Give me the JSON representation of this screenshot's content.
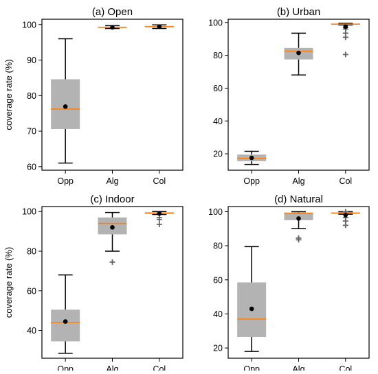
{
  "ylabel_shared": "coverage rate (%)",
  "colors": {
    "box": "#b3b3b3",
    "median": "#ff7f0e",
    "mean": "#000000",
    "outlier": "#666666",
    "axis": "#000000"
  },
  "chart_data": [
    {
      "type": "box",
      "title": "(a) Open",
      "categories": [
        "Opp",
        "Alg",
        "Col"
      ],
      "ylim": [
        59,
        101.5
      ],
      "yticks": [
        60,
        70,
        80,
        90,
        100
      ],
      "ylabel": "coverage rate (%)",
      "boxes": [
        {
          "category": "Opp",
          "whisker_low": 61,
          "q1": 70.6,
          "median": 76.2,
          "q3": 84.6,
          "whisker_high": 96,
          "mean": 76.9,
          "outliers": []
        },
        {
          "category": "Alg",
          "whisker_low": 98.9,
          "q1": 99.1,
          "median": 99.2,
          "q3": 99.4,
          "whisker_high": 99.7,
          "mean": 99.2,
          "outliers": []
        },
        {
          "category": "Col",
          "whisker_low": 98.9,
          "q1": 99.2,
          "median": 99.4,
          "q3": 99.6,
          "whisker_high": 99.9,
          "mean": 99.4,
          "outliers": []
        }
      ]
    },
    {
      "type": "box",
      "title": "(b) Urban",
      "categories": [
        "Opp",
        "Alg",
        "Col"
      ],
      "ylim": [
        10,
        102
      ],
      "yticks": [
        20,
        40,
        60,
        80,
        100
      ],
      "ylabel": "",
      "boxes": [
        {
          "category": "Opp",
          "whisker_low": 13.5,
          "q1": 15.5,
          "median": 17.2,
          "q3": 19.5,
          "whisker_high": 21.5,
          "mean": 17.5,
          "outliers": []
        },
        {
          "category": "Alg",
          "whisker_low": 68,
          "q1": 77.5,
          "median": 82.5,
          "q3": 84.5,
          "whisker_high": 93.5,
          "mean": 81.5,
          "outliers": []
        },
        {
          "category": "Col",
          "whisker_low": 98.5,
          "q1": 98.7,
          "median": 99,
          "q3": 99.3,
          "whisker_high": 99.5,
          "mean": 97.5,
          "outliers": [
            80.5,
            91,
            93.5,
            96,
            97
          ]
        }
      ]
    },
    {
      "type": "box",
      "title": "(c) Indoor",
      "categories": [
        "Opp",
        "Alg",
        "Col"
      ],
      "ylim": [
        26,
        102.5
      ],
      "yticks": [
        40,
        60,
        80,
        100
      ],
      "ylabel": "coverage rate (%)",
      "boxes": [
        {
          "category": "Opp",
          "whisker_low": 28.5,
          "q1": 34.5,
          "median": 44,
          "q3": 50.5,
          "whisker_high": 68,
          "mean": 44.5,
          "outliers": []
        },
        {
          "category": "Alg",
          "whisker_low": 80,
          "q1": 88.5,
          "median": 94,
          "q3": 97,
          "whisker_high": 99.5,
          "mean": 92,
          "outliers": [
            74.5
          ]
        },
        {
          "category": "Col",
          "whisker_low": 98.5,
          "q1": 98.8,
          "median": 99.3,
          "q3": 99.6,
          "whisker_high": 100,
          "mean": 99,
          "outliers": [
            93.5,
            96,
            97
          ]
        }
      ]
    },
    {
      "type": "box",
      "title": "(d) Natural",
      "categories": [
        "Opp",
        "Alg",
        "Col"
      ],
      "ylim": [
        14,
        103
      ],
      "yticks": [
        20,
        40,
        60,
        80,
        100
      ],
      "ylabel": "",
      "boxes": [
        {
          "category": "Opp",
          "whisker_low": 18,
          "q1": 26.5,
          "median": 37,
          "q3": 58.5,
          "whisker_high": 79.5,
          "mean": 43,
          "outliers": []
        },
        {
          "category": "Alg",
          "whisker_low": 90,
          "q1": 95,
          "median": 99,
          "q3": 99.5,
          "whisker_high": 100,
          "mean": 96,
          "outliers": [
            83.5,
            84.5
          ]
        },
        {
          "category": "Col",
          "whisker_low": 98.5,
          "q1": 98.8,
          "median": 99.2,
          "q3": 99.5,
          "whisker_high": 100,
          "mean": 98,
          "outliers": [
            92,
            94.5,
            96.5,
            100
          ]
        }
      ]
    }
  ]
}
